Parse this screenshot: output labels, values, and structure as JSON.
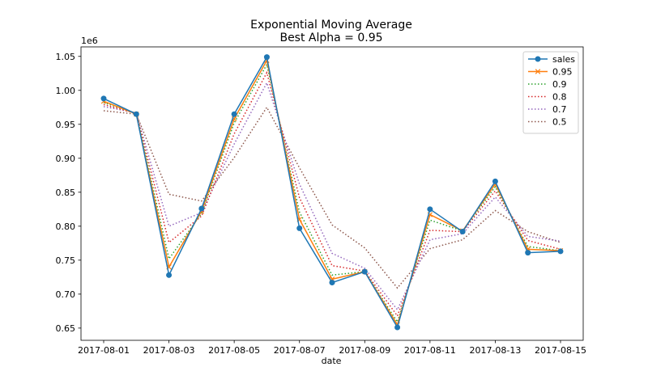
{
  "chart_data": {
    "type": "line",
    "title": "Exponential Moving Average",
    "subtitle": "Best Alpha = 0.95",
    "xlabel": "date",
    "ylabel": "",
    "y_offset_label": "1e6",
    "ylim": [
      0.632,
      1.064
    ],
    "yticks": [
      0.65,
      0.7,
      0.75,
      0.8,
      0.85,
      0.9,
      0.95,
      1.0,
      1.05
    ],
    "ytick_labels": [
      "0.65",
      "0.70",
      "0.75",
      "0.80",
      "0.85",
      "0.90",
      "0.95",
      "1.00",
      "1.05"
    ],
    "x": [
      "2017-08-01",
      "2017-08-02",
      "2017-08-03",
      "2017-08-04",
      "2017-08-05",
      "2017-08-06",
      "2017-08-07",
      "2017-08-08",
      "2017-08-09",
      "2017-08-10",
      "2017-08-11",
      "2017-08-12",
      "2017-08-13",
      "2017-08-14",
      "2017-08-15"
    ],
    "xtick_labels": [
      "2017-08-01",
      "2017-08-03",
      "2017-08-05",
      "2017-08-07",
      "2017-08-09",
      "2017-08-11",
      "2017-08-13",
      "2017-08-15"
    ],
    "legend_position": "top-right",
    "series": [
      {
        "name": "sales",
        "color": "#1f77b4",
        "style": "solid-marker-circle",
        "values": [
          0.988,
          0.965,
          0.728,
          0.826,
          0.965,
          1.049,
          0.797,
          0.717,
          0.733,
          0.651,
          0.825,
          0.792,
          0.866,
          0.761,
          0.763
        ]
      },
      {
        "name": "0.95",
        "color": "#ff7f0e",
        "style": "solid-marker-x",
        "values": [
          0.984,
          0.965,
          0.74,
          0.822,
          0.958,
          1.044,
          0.81,
          0.722,
          0.733,
          0.655,
          0.817,
          0.793,
          0.862,
          0.766,
          0.764
        ]
      },
      {
        "name": "0.9",
        "color": "#2ca02c",
        "style": "dotted",
        "values": [
          0.982,
          0.966,
          0.752,
          0.819,
          0.952,
          1.038,
          0.821,
          0.728,
          0.733,
          0.659,
          0.809,
          0.793,
          0.858,
          0.77,
          0.764
        ]
      },
      {
        "name": "0.8",
        "color": "#d62728",
        "style": "dotted",
        "values": [
          0.979,
          0.966,
          0.776,
          0.815,
          0.936,
          1.026,
          0.842,
          0.742,
          0.734,
          0.668,
          0.794,
          0.792,
          0.852,
          0.779,
          0.766
        ]
      },
      {
        "name": "0.7",
        "color": "#9467bd",
        "style": "dotted",
        "values": [
          0.976,
          0.967,
          0.8,
          0.82,
          0.921,
          1.011,
          0.862,
          0.76,
          0.738,
          0.677,
          0.78,
          0.789,
          0.843,
          0.785,
          0.778
        ]
      },
      {
        "name": "0.5",
        "color": "#8c564b",
        "style": "dotted",
        "values": [
          0.97,
          0.965,
          0.847,
          0.837,
          0.901,
          0.975,
          0.886,
          0.802,
          0.768,
          0.709,
          0.767,
          0.78,
          0.823,
          0.792,
          0.776
        ]
      }
    ]
  }
}
